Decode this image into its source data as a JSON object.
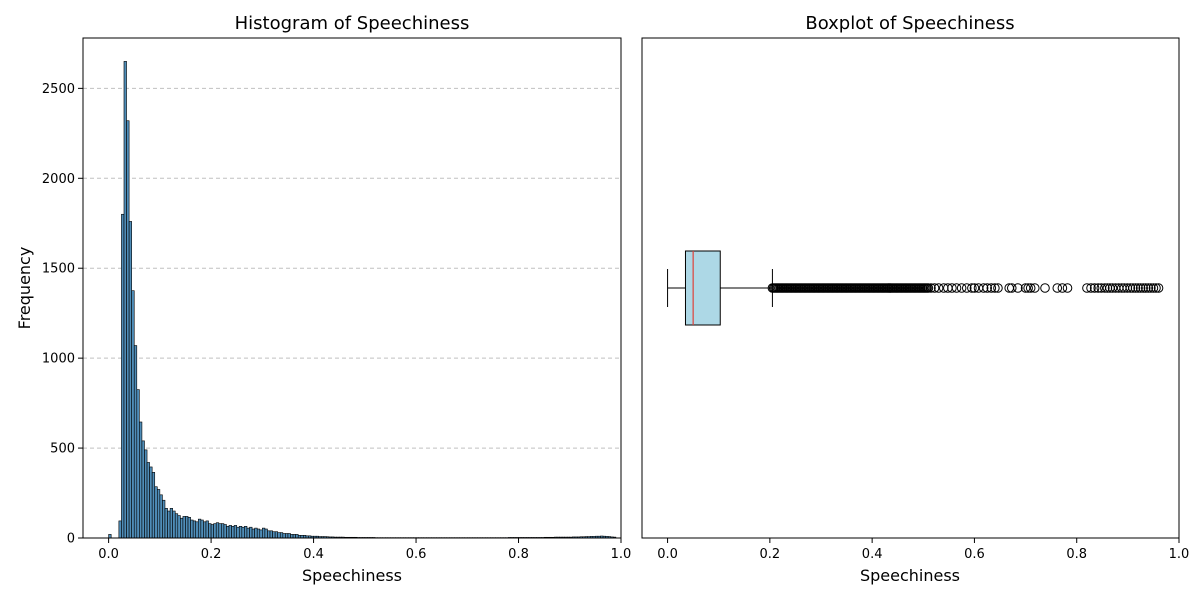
{
  "chart_data": [
    {
      "type": "histogram",
      "title": "Histogram of Speechiness",
      "xlabel": "Speechiness",
      "ylabel": "Frequency",
      "xlim": [
        -0.05,
        1.0
      ],
      "ylim": [
        0,
        2780
      ],
      "xticks": [
        "0.0",
        "0.2",
        "0.4",
        "0.6",
        "0.8",
        "1.0"
      ],
      "yticks": [
        "0",
        "500",
        "1000",
        "1500",
        "2000",
        "2500"
      ],
      "grid": "y-dashed",
      "colors": {
        "bar": "#4f8db8",
        "edge": "#000000",
        "grid": "#c0c0c0"
      },
      "bin_start": 0.0,
      "bin_width": 0.005,
      "values": [
        20,
        0,
        0,
        0,
        95,
        1800,
        2650,
        2320,
        1760,
        1375,
        1070,
        825,
        645,
        540,
        490,
        420,
        395,
        365,
        285,
        270,
        240,
        210,
        165,
        150,
        165,
        150,
        135,
        125,
        110,
        120,
        120,
        115,
        100,
        95,
        90,
        105,
        100,
        90,
        95,
        80,
        75,
        80,
        85,
        80,
        80,
        75,
        65,
        70,
        65,
        70,
        60,
        65,
        60,
        65,
        55,
        60,
        50,
        55,
        50,
        45,
        55,
        50,
        40,
        40,
        35,
        35,
        30,
        30,
        25,
        25,
        25,
        20,
        20,
        20,
        15,
        15,
        15,
        12,
        12,
        10,
        10,
        10,
        8,
        8,
        8,
        7,
        6,
        6,
        5,
        5,
        5,
        5,
        4,
        4,
        4,
        4,
        4,
        3,
        3,
        3,
        3,
        3,
        3,
        3,
        2,
        2,
        2,
        2,
        2,
        2,
        2,
        2,
        2,
        2,
        2,
        2,
        2,
        2,
        2,
        2,
        2,
        2,
        2,
        2,
        2,
        2,
        2,
        2,
        2,
        2,
        2,
        2,
        2,
        2,
        2,
        2,
        2,
        2,
        2,
        2,
        2,
        2,
        2,
        2,
        2,
        2,
        2,
        2,
        2,
        2,
        2,
        2,
        2,
        2,
        2,
        2,
        3,
        3,
        3,
        3,
        3,
        3,
        3,
        3,
        3,
        3,
        3,
        3,
        3,
        3,
        4,
        4,
        4,
        4,
        5,
        5,
        5,
        5,
        5,
        5,
        5,
        6,
        6,
        6,
        7,
        7,
        8,
        8,
        9,
        9,
        10,
        10,
        11,
        10,
        9,
        8,
        6,
        5
      ]
    },
    {
      "type": "boxplot",
      "title": "Boxplot of Speechiness",
      "xlabel": "Speechiness",
      "xlim": [
        -0.05,
        1.0
      ],
      "xticks": [
        "0.0",
        "0.2",
        "0.4",
        "0.6",
        "0.8",
        "1.0"
      ],
      "colors": {
        "box": "#add8e6",
        "median": "#e0413a",
        "edge": "#000000"
      },
      "whisker_low": 0.0,
      "q1": 0.035,
      "median": 0.05,
      "q3": 0.103,
      "whisker_high": 0.205,
      "outliers_dense_range": [
        0.205,
        0.51
      ],
      "outliers": [
        0.515,
        0.522,
        0.53,
        0.54,
        0.548,
        0.556,
        0.565,
        0.575,
        0.585,
        0.595,
        0.6,
        0.608,
        0.618,
        0.625,
        0.633,
        0.64,
        0.646,
        0.668,
        0.673,
        0.685,
        0.7,
        0.705,
        0.71,
        0.718,
        0.738,
        0.762,
        0.772,
        0.782,
        0.82,
        0.828,
        0.835,
        0.842,
        0.848,
        0.855,
        0.86,
        0.865,
        0.87,
        0.876,
        0.882,
        0.888,
        0.893,
        0.899,
        0.905,
        0.91,
        0.915,
        0.92,
        0.925,
        0.93,
        0.935,
        0.94,
        0.945,
        0.95,
        0.955,
        0.96
      ]
    }
  ]
}
